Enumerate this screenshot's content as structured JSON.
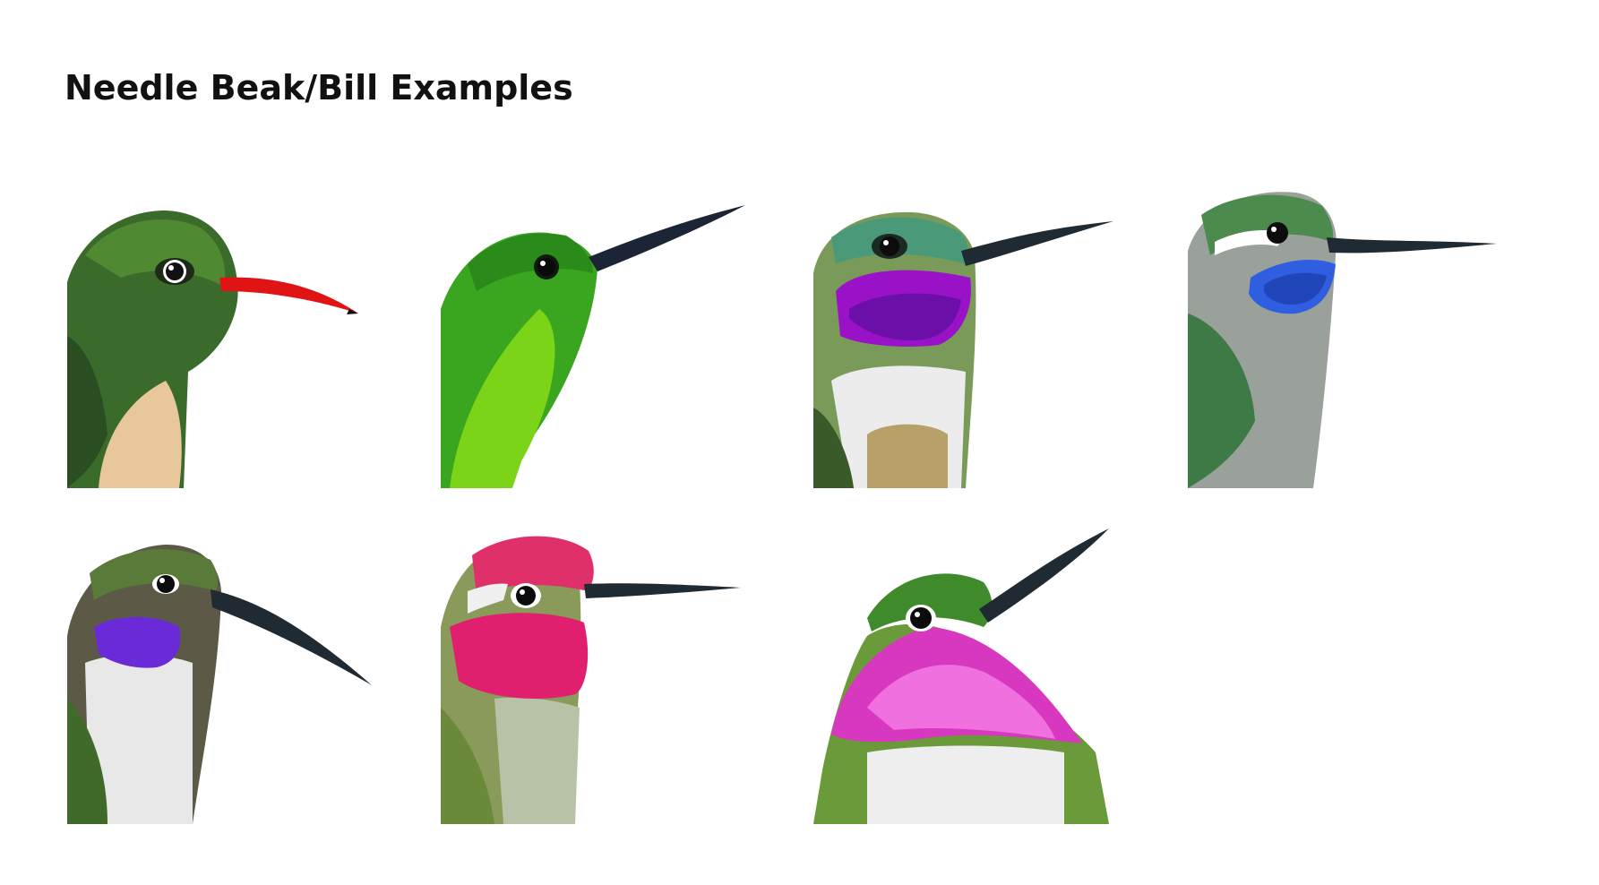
{
  "page": {
    "title": "Needle Beak/Bill Examples"
  },
  "illustrations": [
    {
      "icon": "hummingbird-red-bill-icon",
      "colors": {
        "crown": "#3f7a2c",
        "throat": "#2f5a24",
        "bill": "#e01414",
        "belly": "#e6c79a"
      }
    },
    {
      "icon": "hummingbird-emerald-icon",
      "colors": {
        "crown": "#2e9a1e",
        "throat": "#6fd11a",
        "bill": "#1c2536",
        "belly": "#4fb81c"
      }
    },
    {
      "icon": "hummingbird-purple-gorget-icon",
      "colors": {
        "crown": "#4a9a7a",
        "throat": "#9a12c8",
        "bill": "#1f2a33",
        "belly": "#eeeeee"
      }
    },
    {
      "icon": "hummingbird-blue-throat-icon",
      "colors": {
        "crown": "#3d7a45",
        "throat": "#2f5fe0",
        "bill": "#1f2a33",
        "belly": "#a8aaa6"
      }
    },
    {
      "icon": "hummingbird-violet-throat-icon",
      "colors": {
        "crown": "#4f6a3a",
        "throat": "#6a2ad8",
        "bill": "#1f2a33",
        "belly": "#e8e8e8"
      }
    },
    {
      "icon": "hummingbird-magenta-head-icon",
      "colors": {
        "crown": "#e0306a",
        "throat": "#e0206f",
        "bill": "#1f2a33",
        "belly": "#9aa77a"
      }
    },
    {
      "icon": "hummingbird-pink-gorget-icon",
      "colors": {
        "crown": "#3f8a2a",
        "throat": "#e040c8",
        "bill": "#1f2a33",
        "belly": "#eeeeee"
      }
    }
  ]
}
